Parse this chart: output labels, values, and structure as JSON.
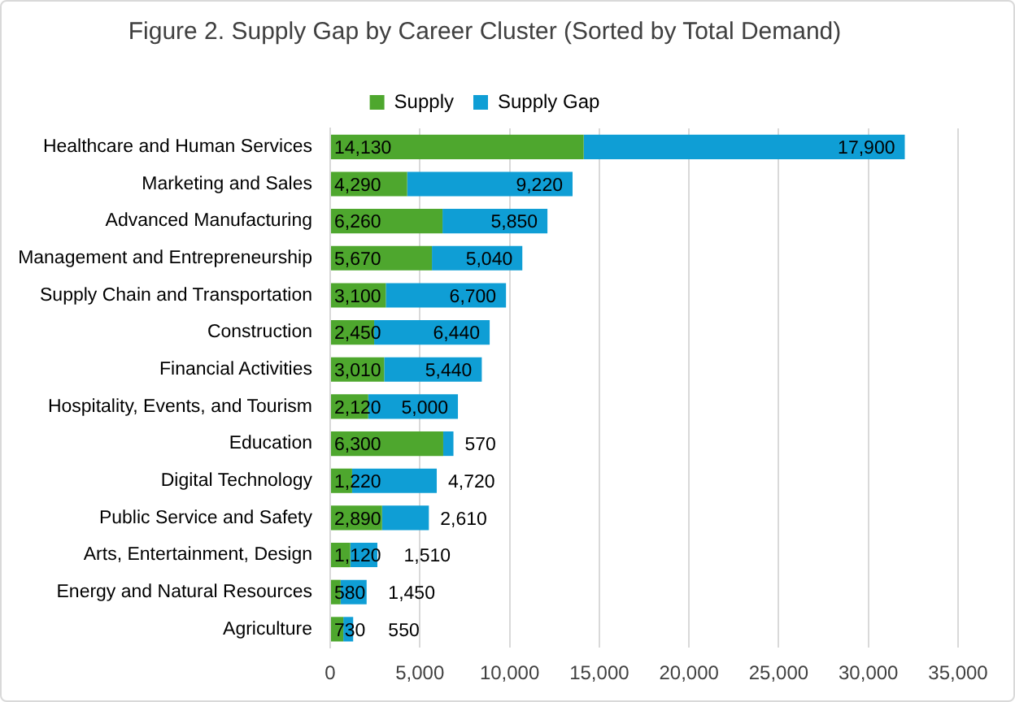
{
  "chart_data": {
    "type": "bar",
    "orientation": "horizontal",
    "stacked": true,
    "title": "Figure 2. Supply Gap by Career Cluster (Sorted by Total Demand)",
    "categories": [
      "Healthcare and Human Services",
      "Marketing and Sales",
      "Advanced Manufacturing",
      "Management and Entrepreneurship",
      "Supply Chain and Transportation",
      "Construction",
      "Financial Activities",
      "Hospitality, Events, and Tourism",
      "Education",
      "Digital Technology",
      "Public Service and Safety",
      "Arts, Entertainment, Design",
      "Energy and Natural Resources",
      "Agriculture"
    ],
    "series": [
      {
        "name": "Supply",
        "color": "#4ea72e",
        "values": [
          14130,
          4290,
          6260,
          5670,
          3100,
          2450,
          3010,
          2120,
          6300,
          1220,
          2890,
          1120,
          580,
          730
        ],
        "value_labels": [
          "14,130",
          "4,290",
          "6,260",
          "5,670",
          "3,100",
          "2,450",
          "3,010",
          "2,120",
          "6,300",
          "1,220",
          "2,890",
          "1,120",
          "580",
          "730"
        ]
      },
      {
        "name": "Supply Gap",
        "color": "#0f9ed5",
        "values": [
          17900,
          9220,
          5850,
          5040,
          6700,
          6440,
          5440,
          5000,
          570,
          4720,
          2610,
          1510,
          1450,
          550
        ],
        "value_labels": [
          "17,900",
          "9,220",
          "5,850",
          "5,040",
          "6,700",
          "6,440",
          "5,440",
          "5,000",
          "570",
          "4,720",
          "2,610",
          "1,510",
          "1,450",
          "550"
        ]
      }
    ],
    "xlim": [
      0,
      35000
    ],
    "xticks": [
      0,
      {
        "value": 5000,
        "label": "5,000"
      },
      {
        "value": 10000,
        "label": "10,000"
      },
      {
        "value": 15000,
        "label": "15,000"
      },
      {
        "value": 20000,
        "label": "20,000"
      },
      {
        "value": 25000,
        "label": "25,000"
      },
      {
        "value": 30000,
        "label": "30,000"
      },
      {
        "value": 35000,
        "label": "35,000"
      }
    ],
    "grid": "x",
    "legend": "top"
  }
}
